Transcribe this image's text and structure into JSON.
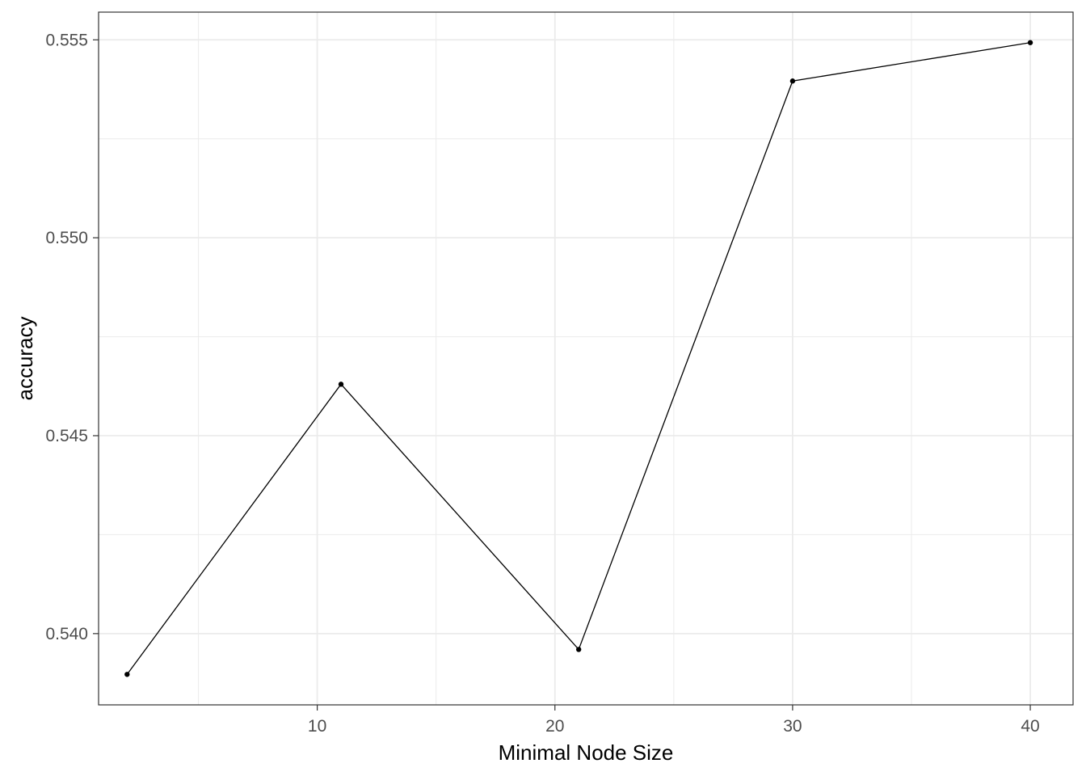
{
  "chart_data": {
    "type": "line",
    "title": "",
    "xlabel": "Minimal Node Size",
    "ylabel": "accuracy",
    "x": [
      2,
      11,
      21,
      30,
      40
    ],
    "series": [
      {
        "values": [
          0.53897,
          0.5463,
          0.5396,
          0.55396,
          0.55493
        ]
      }
    ],
    "xlim": [
      0.8,
      41.8
    ],
    "ylim": [
      0.5382,
      0.5557
    ],
    "x_ticks": [
      10,
      20,
      30,
      40
    ],
    "x_tick_labels": [
      "10",
      "20",
      "30",
      "40"
    ],
    "y_ticks": [
      0.54,
      0.545,
      0.55,
      0.555
    ],
    "y_tick_labels": [
      "0.540",
      "0.545",
      "0.550",
      "0.555"
    ],
    "x_minor_ticks": [
      5,
      15,
      25,
      35
    ],
    "y_minor_ticks": [
      0.5425,
      0.5475,
      0.5525
    ],
    "grid": true,
    "legend": "none",
    "colors": {
      "line": "#000000",
      "point": "#000000",
      "grid": "#ebebeb",
      "border": "#333333",
      "tick_text": "#4d4d4d"
    }
  }
}
